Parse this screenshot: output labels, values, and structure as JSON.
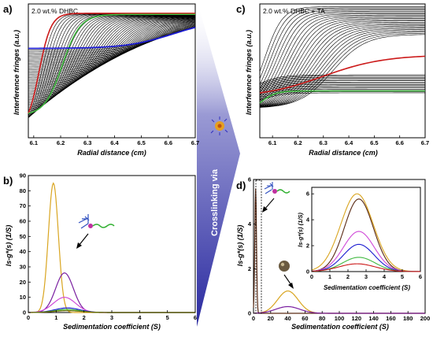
{
  "panels": {
    "a": {
      "label": "a)",
      "note": "2.0 wt.% DHBC",
      "xlabel": "Radial distance (cm)",
      "ylabel": "Interference fringes (a.u.)"
    },
    "b": {
      "label": "b)",
      "xlabel": "Sedimentation coefficient (S)",
      "ylabel": "ls-g*(s) (1/S)"
    },
    "c": {
      "label": "c)",
      "note": "2.0 wt.% DHBC + TA",
      "xlabel": "Radial distance (cm)",
      "ylabel": "Interference fringes (a.u.)"
    },
    "d": {
      "label": "d)",
      "xlabel": "Sedimentation coefficient (S)",
      "ylabel": "ls-g*(s) (1/S)",
      "inset_xlabel": "Sedimentation coefficient (S)",
      "inset_ylabel": "ls-g*(s) (1/S)"
    }
  },
  "arrow_text": "Crosslinking via",
  "colors": {
    "gold": "#d9a520",
    "purple": "#7a1fa0",
    "magenta": "#d04ad8",
    "brown": "#5a2a14",
    "blue": "#1a1ad0",
    "green": "#3fb83f",
    "red": "#cc1a1a",
    "olive": "#6b6b00",
    "arrow": "#4a4aa8"
  },
  "icons": [
    "polymer-coil-icon",
    "nanoparticle-icon",
    "sphere-particle-icon"
  ],
  "chart_data": [
    {
      "id": "a",
      "type": "line",
      "x_range": [
        6.08,
        6.7
      ],
      "x_ticks": [
        6.1,
        6.2,
        6.3,
        6.4,
        6.5,
        6.6,
        6.7
      ],
      "description_series": "sigmoidal sedimentation boundaries, 50 scans, plus highlighted first/last scans",
      "series": [
        {
          "color": "black",
          "count": 50
        },
        {
          "color": "red",
          "role": "early scan"
        },
        {
          "color": "green",
          "role": "intermediate scan"
        },
        {
          "color": "blue",
          "role": "late scan"
        }
      ]
    },
    {
      "id": "b",
      "type": "line",
      "xlim": [
        0,
        6
      ],
      "x_ticks": [
        0,
        1,
        2,
        3,
        4,
        5,
        6
      ],
      "ylim": [
        0,
        90
      ],
      "y_ticks": [
        0,
        10,
        20,
        30,
        40,
        50,
        60,
        70,
        80,
        90
      ],
      "series": [
        {
          "color": "gold",
          "peak_x": 0.9,
          "peak_y": 85,
          "width": 0.18
        },
        {
          "color": "purple",
          "peak_x": 1.3,
          "peak_y": 26,
          "width": 0.32
        },
        {
          "color": "magenta",
          "peak_x": 1.3,
          "peak_y": 10,
          "width": 0.4
        },
        {
          "color": "blue",
          "peak_x": 1.4,
          "peak_y": 3,
          "width": 0.45
        },
        {
          "color": "green",
          "peak_x": 1.4,
          "peak_y": 2,
          "width": 0.45
        },
        {
          "color": "olive",
          "peak_x": 1.4,
          "peak_y": 1.2,
          "width": 0.5
        }
      ]
    },
    {
      "id": "c",
      "type": "line",
      "x_range": [
        6.05,
        6.7
      ],
      "x_ticks": [
        6.1,
        6.2,
        6.3,
        6.4,
        6.5,
        6.6,
        6.7
      ],
      "description_series": "sedimentation boundaries, steep-rising scans plus flat plateau scans",
      "series": [
        {
          "color": "black",
          "count": 40
        },
        {
          "color": "red",
          "role": "highlighted scan"
        },
        {
          "color": "green",
          "role": "highlighted scan"
        }
      ]
    },
    {
      "id": "d",
      "type": "line",
      "xlim": [
        0,
        200
      ],
      "x_ticks": [
        0,
        20,
        40,
        60,
        80,
        100,
        120,
        140,
        160,
        180,
        200
      ],
      "ylim": [
        0,
        6
      ],
      "y_ticks": [
        0,
        2,
        4,
        6
      ],
      "series": [
        {
          "color": "gold",
          "peak_x": 40,
          "peak_y": 1.0,
          "width": 12
        },
        {
          "color": "brown",
          "peak_x": 2.5,
          "peak_y": 5.6,
          "width": 1
        },
        {
          "color": "purple",
          "peak_x": 40,
          "peak_y": 0.3,
          "width": 14
        }
      ],
      "inset": {
        "xlim": [
          0,
          6
        ],
        "x_ticks": [
          0,
          1,
          2,
          3,
          4,
          5,
          6
        ],
        "ylim": [
          0,
          6.5
        ],
        "y_ticks": [
          0,
          2,
          4,
          6
        ],
        "series": [
          {
            "color": "gold",
            "peak_x": 2.5,
            "peak_y": 6.0,
            "width": 0.9
          },
          {
            "color": "brown",
            "peak_x": 2.6,
            "peak_y": 5.6,
            "width": 0.8
          },
          {
            "color": "magenta",
            "peak_x": 2.6,
            "peak_y": 3.1,
            "width": 0.85
          },
          {
            "color": "blue",
            "peak_x": 2.6,
            "peak_y": 2.1,
            "width": 0.85
          },
          {
            "color": "green",
            "peak_x": 2.6,
            "peak_y": 1.1,
            "width": 0.9
          },
          {
            "color": "red",
            "peak_x": 2.5,
            "peak_y": 0.6,
            "width": 1.0
          }
        ]
      }
    }
  ]
}
